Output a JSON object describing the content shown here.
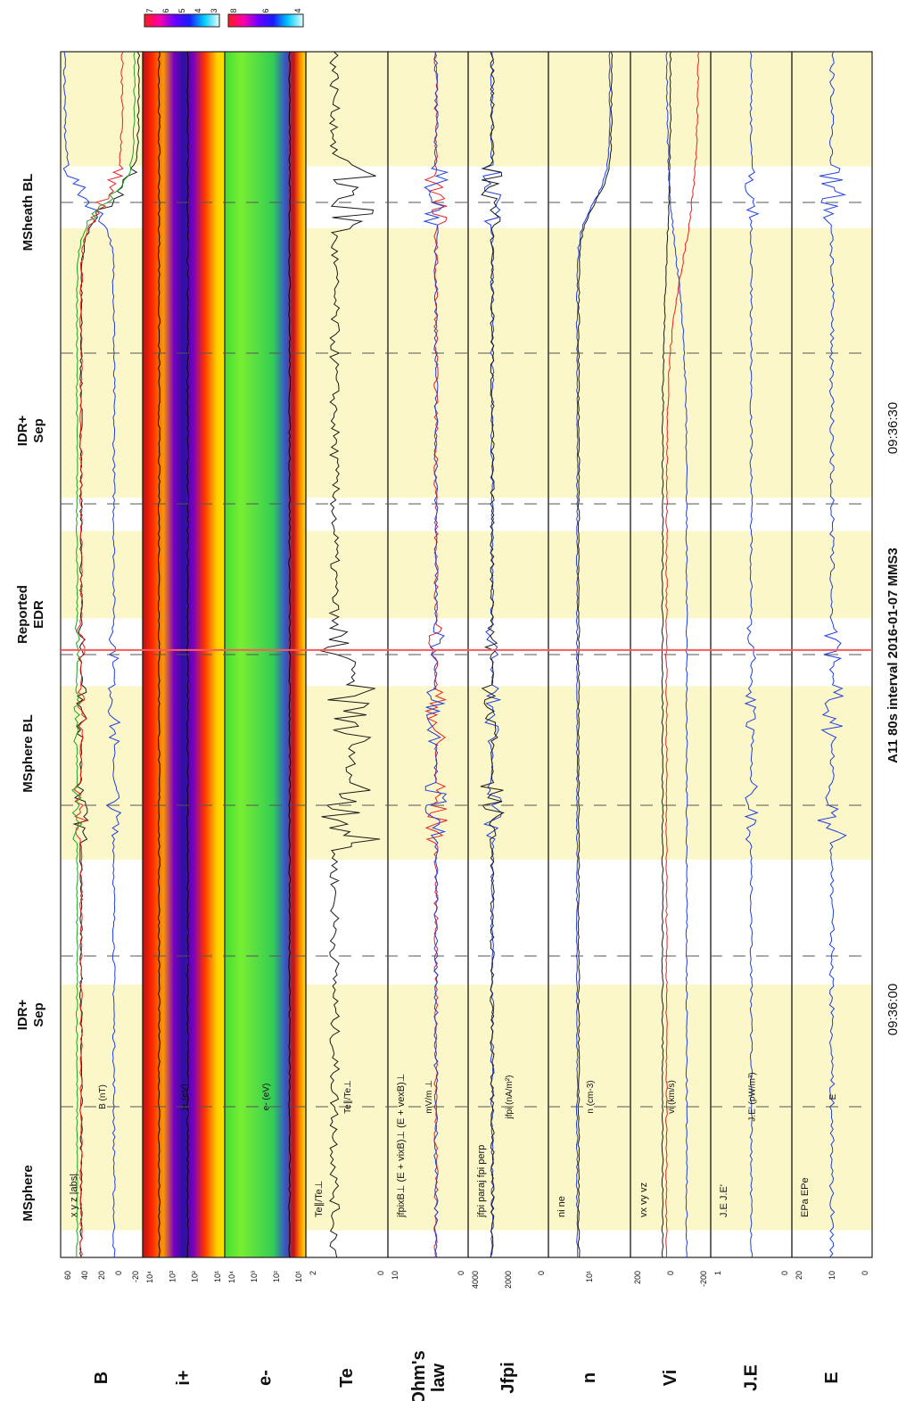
{
  "figure": {
    "footer_title": "A11 80s interval 2016-01-07 MMS3",
    "time_ticks": [
      "09:36:00",
      "09:36:30"
    ]
  },
  "regions": [
    {
      "label": "MSphere"
    },
    {
      "label": "IDR+\nSep"
    },
    {
      "label": "MSphere BL"
    },
    {
      "label": "Reported\nEDR"
    },
    {
      "label": "IDR+\nSep"
    },
    {
      "label": "MSheath BL"
    }
  ],
  "colorbars": [
    {
      "name": "i+",
      "ticks": [
        "7",
        "6",
        "5",
        "4",
        "3"
      ]
    },
    {
      "name": "e-",
      "ticks": [
        "8",
        "6",
        "4"
      ]
    }
  ],
  "panels": [
    {
      "id": "B",
      "label": "B",
      "ylabel": "B (nT)",
      "legend": [
        "x",
        "y",
        "z",
        "|abs|"
      ],
      "ticks": [
        "60",
        "40",
        "20",
        "0",
        "-20"
      ]
    },
    {
      "id": "i",
      "label": "i+",
      "ylabel": "i+ (eV)",
      "legend": [],
      "ticks": [
        "10⁴",
        "10³",
        "10²",
        "10¹"
      ]
    },
    {
      "id": "e",
      "label": "e-",
      "ylabel": "e- (eV)",
      "legend": [],
      "ticks": [
        "10⁴",
        "10³",
        "10²",
        "10¹"
      ]
    },
    {
      "id": "Te",
      "label": "Te",
      "ylabel": "Te∥/Te⊥",
      "legend": [
        "Te∥/Te⊥"
      ],
      "ticks": [
        "2",
        "0"
      ]
    },
    {
      "id": "ohm",
      "label": "Ohm's\nlaw",
      "ylabel": "mV/m ⊥",
      "legend": [
        "jfpixB⊥",
        "(E + vixB)⊥",
        "(E + vexB)⊥"
      ],
      "ticks": [
        "10",
        "0"
      ]
    },
    {
      "id": "J",
      "label": "Jfpi",
      "ylabel": "jfpi (nA/m²)",
      "legend": [
        "jfpi",
        "paraj",
        "fpi perp"
      ],
      "ticks": [
        "4000",
        "2000",
        "0"
      ]
    },
    {
      "id": "n",
      "label": "n",
      "ylabel": "n (cm-3)",
      "legend": [
        "ni",
        "ne"
      ],
      "ticks": [
        "10¹"
      ]
    },
    {
      "id": "V",
      "label": "Vi",
      "ylabel": "vi (km/s)",
      "legend": [
        "vx",
        "vy",
        "vz"
      ],
      "ticks": [
        "200",
        "0",
        "-200"
      ]
    },
    {
      "id": "JE",
      "label": "J.E",
      "ylabel": "J.E' (pW/m³)",
      "legend": [
        "J.E",
        "J.E'"
      ],
      "ticks": [
        "1",
        "0"
      ]
    },
    {
      "id": "E",
      "label": "E",
      "ylabel": "E",
      "legend": [
        "EPa",
        "EPe"
      ],
      "ticks": [
        "20",
        "10",
        "0"
      ]
    }
  ],
  "colors": {
    "x": "#1a1a1a",
    "y": "#e82020",
    "z": "#1f3fe0",
    "abs": "#1aa31a",
    "shade": "#fbf7c8",
    "edr": "#ff5a5a"
  },
  "chart_data": {
    "type": "line",
    "title": "A11 80s interval 2016-01-07 MMS3",
    "x_axis": {
      "ticks": [
        "09:36:00",
        "09:36:30"
      ]
    },
    "shaded_intervals_s": [
      [
        0,
        7.6
      ],
      [
        11.7,
        29.6
      ],
      [
        31.8,
        37.6
      ],
      [
        42.1,
        53.6
      ],
      [
        61.9,
        78.2
      ]
    ],
    "reported_edr_s": 39.7,
    "series": [
      {
        "name": "x",
        "panel": "B"
      },
      {
        "name": "y",
        "panel": "B"
      },
      {
        "name": "z",
        "panel": "B"
      },
      {
        "name": "|abs|",
        "panel": "B"
      },
      {
        "name": "Te∥/Te⊥",
        "panel": "Te"
      },
      {
        "name": "ni",
        "panel": "n"
      },
      {
        "name": "ne",
        "panel": "n"
      },
      {
        "name": "vx",
        "panel": "Vi"
      },
      {
        "name": "vy",
        "panel": "Vi"
      },
      {
        "name": "vz",
        "panel": "Vi"
      }
    ]
  }
}
